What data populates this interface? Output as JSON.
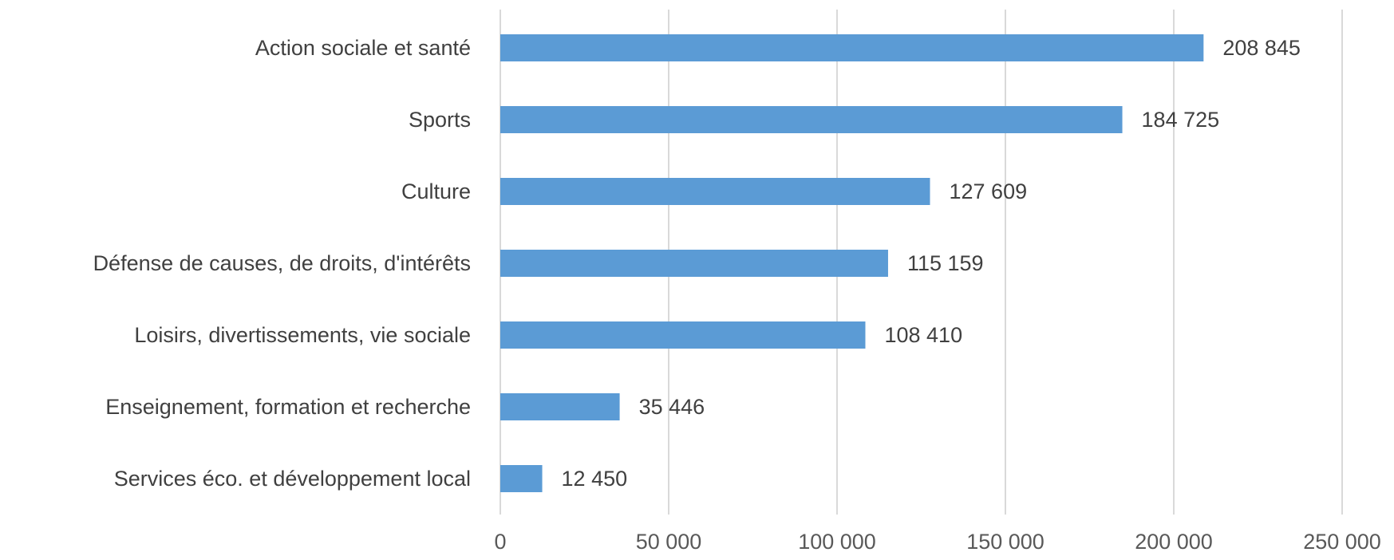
{
  "chart_data": {
    "type": "bar",
    "orientation": "horizontal",
    "categories": [
      "Action sociale et santé",
      "Sports",
      "Culture",
      "Défense de causes, de droits, d'intérêts",
      "Loisirs, divertissements, vie sociale",
      "Enseignement, formation et recherche",
      "Services éco. et développement local"
    ],
    "values": [
      208845,
      184725,
      127609,
      115159,
      108410,
      35446,
      12450
    ],
    "data_labels": [
      "208 845",
      "184 725",
      "127 609",
      "115 159",
      "108 410",
      "35 446",
      "12 450"
    ],
    "title": "",
    "xlabel": "",
    "ylabel": "",
    "xlim": [
      0,
      250000
    ],
    "x_ticks": [
      0,
      50000,
      100000,
      150000,
      200000,
      250000
    ],
    "x_tick_labels": [
      "0",
      "50 000",
      "100 000",
      "150 000",
      "200 000",
      "250 000"
    ],
    "grid": "vertical",
    "legend": "none",
    "bar_color": "#5b9bd5"
  }
}
